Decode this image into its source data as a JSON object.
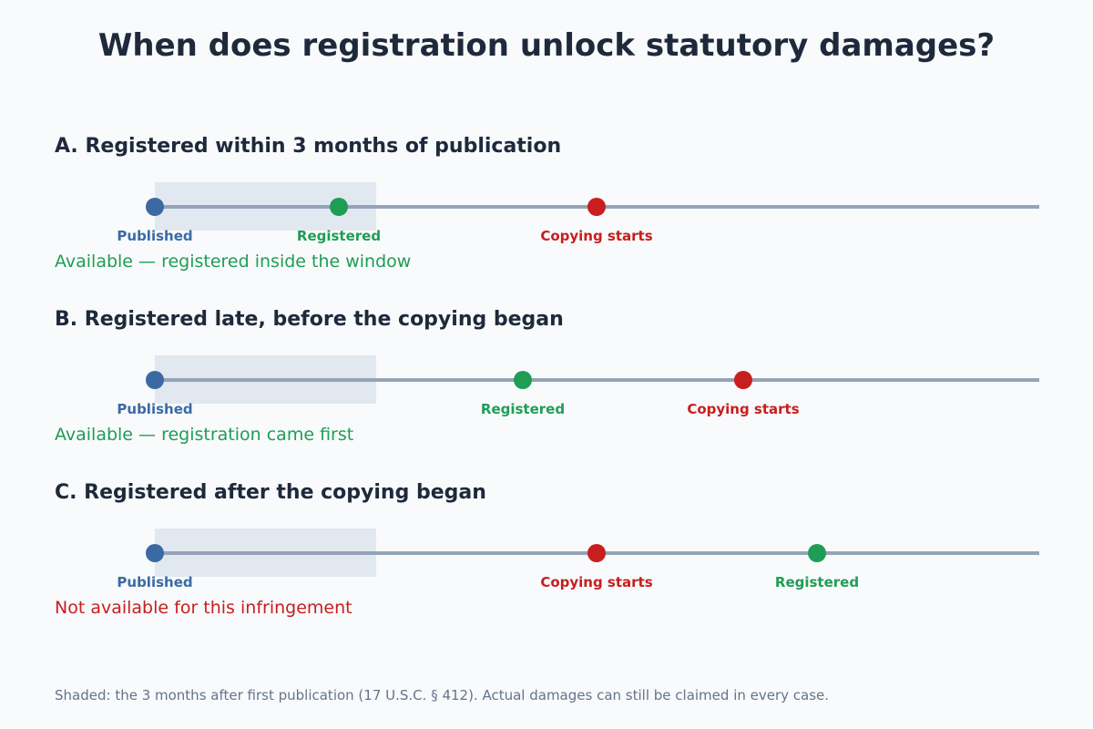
{
  "title": "When does registration unlock statutory damages?",
  "scenarios": [
    {
      "heading": "A. Registered within 3 months of publication",
      "events": {
        "published": {
          "label": "Published"
        },
        "registered": {
          "label": "Registered"
        },
        "copying": {
          "label": "Copying starts"
        }
      },
      "verdict": "Available — registered inside the window",
      "available": true
    },
    {
      "heading": "B. Registered late, before the copying began",
      "events": {
        "published": {
          "label": "Published"
        },
        "registered": {
          "label": "Registered"
        },
        "copying": {
          "label": "Copying starts"
        }
      },
      "verdict": "Available — registration came first",
      "available": true
    },
    {
      "heading": "C. Registered after the copying began",
      "events": {
        "published": {
          "label": "Published"
        },
        "copying": {
          "label": "Copying starts"
        },
        "registered": {
          "label": "Registered"
        }
      },
      "verdict": "Not available for this infringement",
      "available": false
    }
  ],
  "footnote": "Shaded: the 3 months after first publication (17 U.S.C. § 412). Actual damages can still be claimed in every case.",
  "colors": {
    "published": "#3b6aa3",
    "registered": "#1f9d55",
    "copying": "#c81e1e",
    "window": "#e2e8f0",
    "timeline": "#94a3b8"
  }
}
